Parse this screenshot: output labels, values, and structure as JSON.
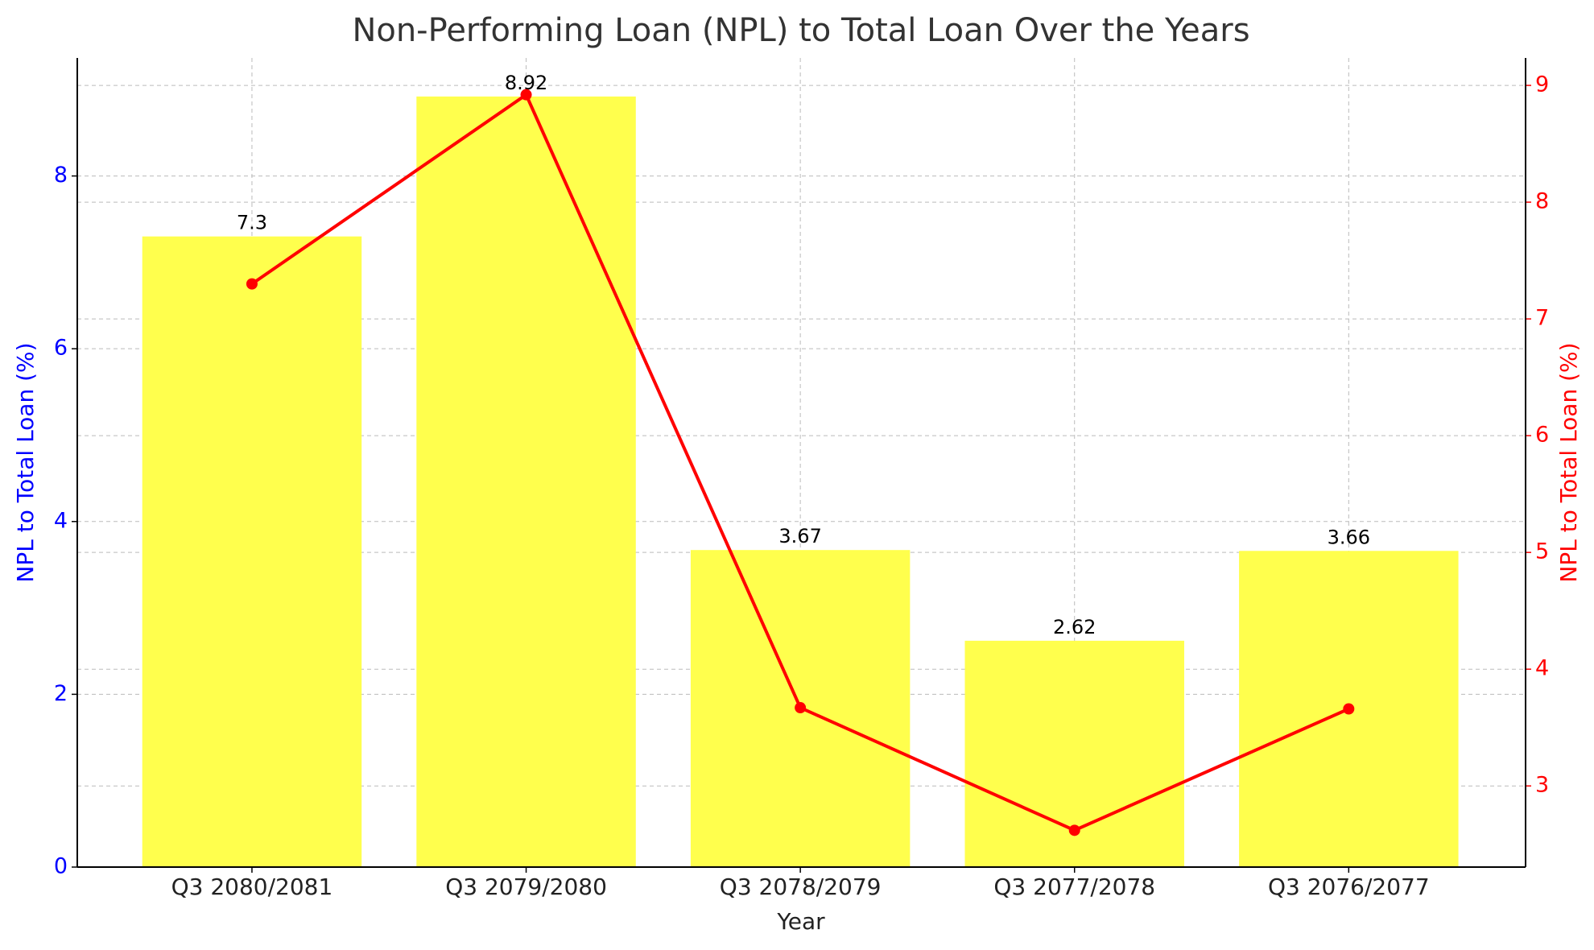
{
  "chart_data": {
    "type": "bar",
    "title": "Non-Performing Loan (NPL) to Total Loan Over the Years",
    "x_label": "Year",
    "y_label": "NPL to Total Loan (%)",
    "y2_label": "NPL to Total Loan (%)",
    "categories": [
      "Q3 2080/2081",
      "Q3 2079/2080",
      "Q3 2078/2079",
      "Q3 2077/2078",
      "Q3 2076/2077"
    ],
    "series": [
      {
        "type": "bar",
        "color": "#ffff4d",
        "values": [
          7.3,
          8.92,
          3.67,
          2.62,
          3.66
        ]
      },
      {
        "type": "line",
        "color": "#ff0000",
        "axis": "y2",
        "values": [
          7.3,
          8.92,
          3.67,
          2.62,
          3.66
        ]
      }
    ],
    "ylim": [
      0,
      9.366
    ],
    "yticks": [
      0,
      2,
      4,
      6,
      8
    ],
    "y_color": "#0000ff",
    "y2lim": [
      2.305,
      9.235
    ],
    "y2ticks": [
      3,
      4,
      5,
      6,
      7,
      8,
      9
    ],
    "y2_color": "#ff0000",
    "grid": true
  }
}
